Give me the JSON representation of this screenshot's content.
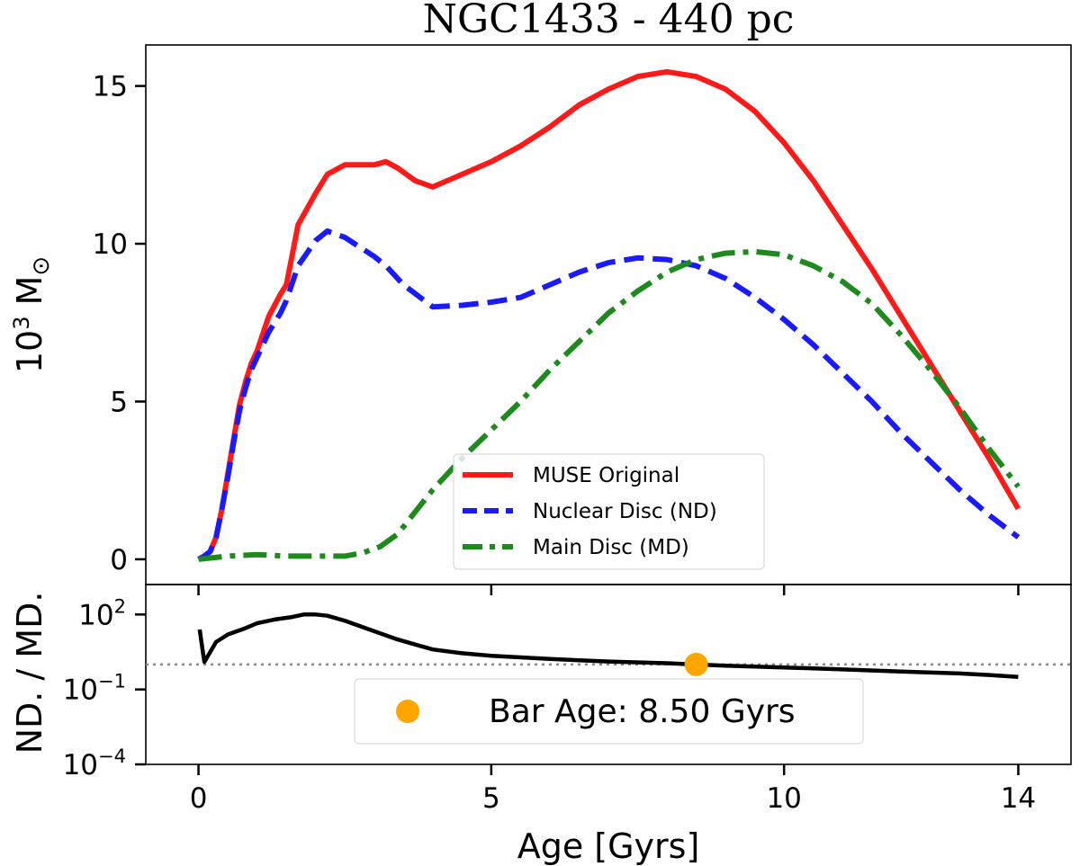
{
  "chart_data": [
    {
      "type": "line",
      "title": "NGC1433 - 440 pc",
      "ylabel": "10",
      "ylabel_sup": "3",
      "ylabel_unit": "M",
      "ylabel_sym": "⊙",
      "xlim": [
        -0.9,
        14.9
      ],
      "ylim": [
        -0.8,
        16.3
      ],
      "yticks": [
        0,
        5,
        10,
        15
      ],
      "ytick_labels": [
        "0",
        "5",
        "10",
        "15"
      ],
      "legend_loc": "lower center",
      "series": [
        {
          "name": "MUSE Original",
          "color": "#ff1a1a",
          "style": "solid",
          "x": [
            0.0,
            0.1,
            0.2,
            0.3,
            0.4,
            0.5,
            0.6,
            0.7,
            0.8,
            0.9,
            1.0,
            1.2,
            1.4,
            1.5,
            1.7,
            2.0,
            2.2,
            2.5,
            3.0,
            3.2,
            3.4,
            3.7,
            4.0,
            4.5,
            5.0,
            5.5,
            6.0,
            6.5,
            7.0,
            7.5,
            8.0,
            8.5,
            9.0,
            9.5,
            10.0,
            10.5,
            11.0,
            11.5,
            12.0,
            12.5,
            13.0,
            13.5,
            14.0
          ],
          "y": [
            0.0,
            0.1,
            0.25,
            0.7,
            1.6,
            2.7,
            3.8,
            4.9,
            5.6,
            6.2,
            6.6,
            7.7,
            8.4,
            8.7,
            10.6,
            11.6,
            12.2,
            12.5,
            12.5,
            12.6,
            12.4,
            12.0,
            11.8,
            12.2,
            12.6,
            13.1,
            13.7,
            14.4,
            14.9,
            15.3,
            15.45,
            15.3,
            14.9,
            14.2,
            13.2,
            12.0,
            10.6,
            9.2,
            7.7,
            6.2,
            4.7,
            3.2,
            1.6
          ]
        },
        {
          "name": "Nuclear Disc (ND)",
          "color": "#1a1aff",
          "style": "dashed",
          "x": [
            0.0,
            0.1,
            0.2,
            0.3,
            0.4,
            0.5,
            0.6,
            0.7,
            0.8,
            0.9,
            1.0,
            1.2,
            1.4,
            1.5,
            1.7,
            2.0,
            2.2,
            2.5,
            3.0,
            3.2,
            3.5,
            4.0,
            4.5,
            5.0,
            5.5,
            6.0,
            6.5,
            7.0,
            7.5,
            8.0,
            8.5,
            9.0,
            9.5,
            10.0,
            10.5,
            11.0,
            11.5,
            12.0,
            12.5,
            13.0,
            13.5,
            14.0
          ],
          "y": [
            0.0,
            0.1,
            0.25,
            0.7,
            1.6,
            2.6,
            3.7,
            4.7,
            5.4,
            6.0,
            6.4,
            7.2,
            7.8,
            8.2,
            9.3,
            10.1,
            10.4,
            10.2,
            9.6,
            9.3,
            8.7,
            8.0,
            8.05,
            8.15,
            8.3,
            8.7,
            9.1,
            9.4,
            9.55,
            9.5,
            9.3,
            8.9,
            8.3,
            7.6,
            6.8,
            5.9,
            5.0,
            4.0,
            3.1,
            2.2,
            1.4,
            0.7
          ]
        },
        {
          "name": "Main Disc (MD)",
          "color": "#1e8a1e",
          "style": "dashdot",
          "x": [
            0.0,
            0.5,
            1.0,
            1.5,
            2.0,
            2.5,
            2.8,
            3.1,
            3.4,
            3.7,
            4.0,
            4.5,
            5.0,
            5.5,
            6.0,
            6.5,
            7.0,
            7.5,
            8.0,
            8.5,
            9.0,
            9.5,
            10.0,
            10.5,
            11.0,
            11.5,
            12.0,
            12.5,
            13.0,
            13.5,
            14.0
          ],
          "y": [
            0.0,
            0.1,
            0.15,
            0.1,
            0.1,
            0.1,
            0.2,
            0.4,
            0.8,
            1.5,
            2.2,
            3.2,
            4.1,
            5.0,
            6.0,
            6.9,
            7.8,
            8.5,
            9.1,
            9.5,
            9.7,
            9.75,
            9.65,
            9.3,
            8.8,
            8.1,
            7.1,
            6.0,
            4.8,
            3.5,
            2.3
          ]
        }
      ]
    },
    {
      "type": "line",
      "ylabel": "ND. / MD.",
      "xlabel": "Age [Gyrs]",
      "xlim": [
        -0.9,
        14.9
      ],
      "xticks": [
        0,
        5,
        10,
        14
      ],
      "xtick_labels": [
        "0",
        "5",
        "10",
        "14"
      ],
      "yscale": "log",
      "ylim_log10": [
        -4,
        3.2
      ],
      "yticks_log10": [
        -4,
        -1,
        2
      ],
      "ytick_labels": {
        "base": "10",
        "exponents": [
          "−4",
          "−1",
          "2"
        ]
      },
      "reference_line": {
        "y": 1,
        "style": "dotted",
        "color": "#888888"
      },
      "legend_loc": "lower center",
      "series": [
        {
          "name": "ND/MD",
          "color": "#000000",
          "style": "solid",
          "x": [
            0.02,
            0.05,
            0.1,
            0.2,
            0.3,
            0.5,
            0.8,
            1.0,
            1.3,
            1.6,
            1.8,
            2.0,
            2.2,
            2.5,
            2.8,
            3.1,
            3.4,
            3.7,
            4.0,
            4.5,
            5.0,
            6.0,
            7.0,
            8.0,
            8.5,
            9.0,
            10.0,
            11.0,
            12.0,
            13.0,
            13.5,
            14.0
          ],
          "y_log10": [
            1.4,
            0.9,
            0.1,
            0.5,
            0.9,
            1.2,
            1.45,
            1.65,
            1.8,
            1.9,
            2.0,
            2.0,
            1.95,
            1.75,
            1.5,
            1.25,
            1.0,
            0.8,
            0.6,
            0.45,
            0.35,
            0.22,
            0.12,
            0.05,
            0.0,
            -0.05,
            -0.12,
            -0.2,
            -0.28,
            -0.36,
            -0.42,
            -0.5
          ]
        }
      ],
      "marker": {
        "label": "Bar Age: 8.50 Gyrs",
        "x": 8.5,
        "y": 1,
        "color": "#ffa500"
      }
    }
  ]
}
